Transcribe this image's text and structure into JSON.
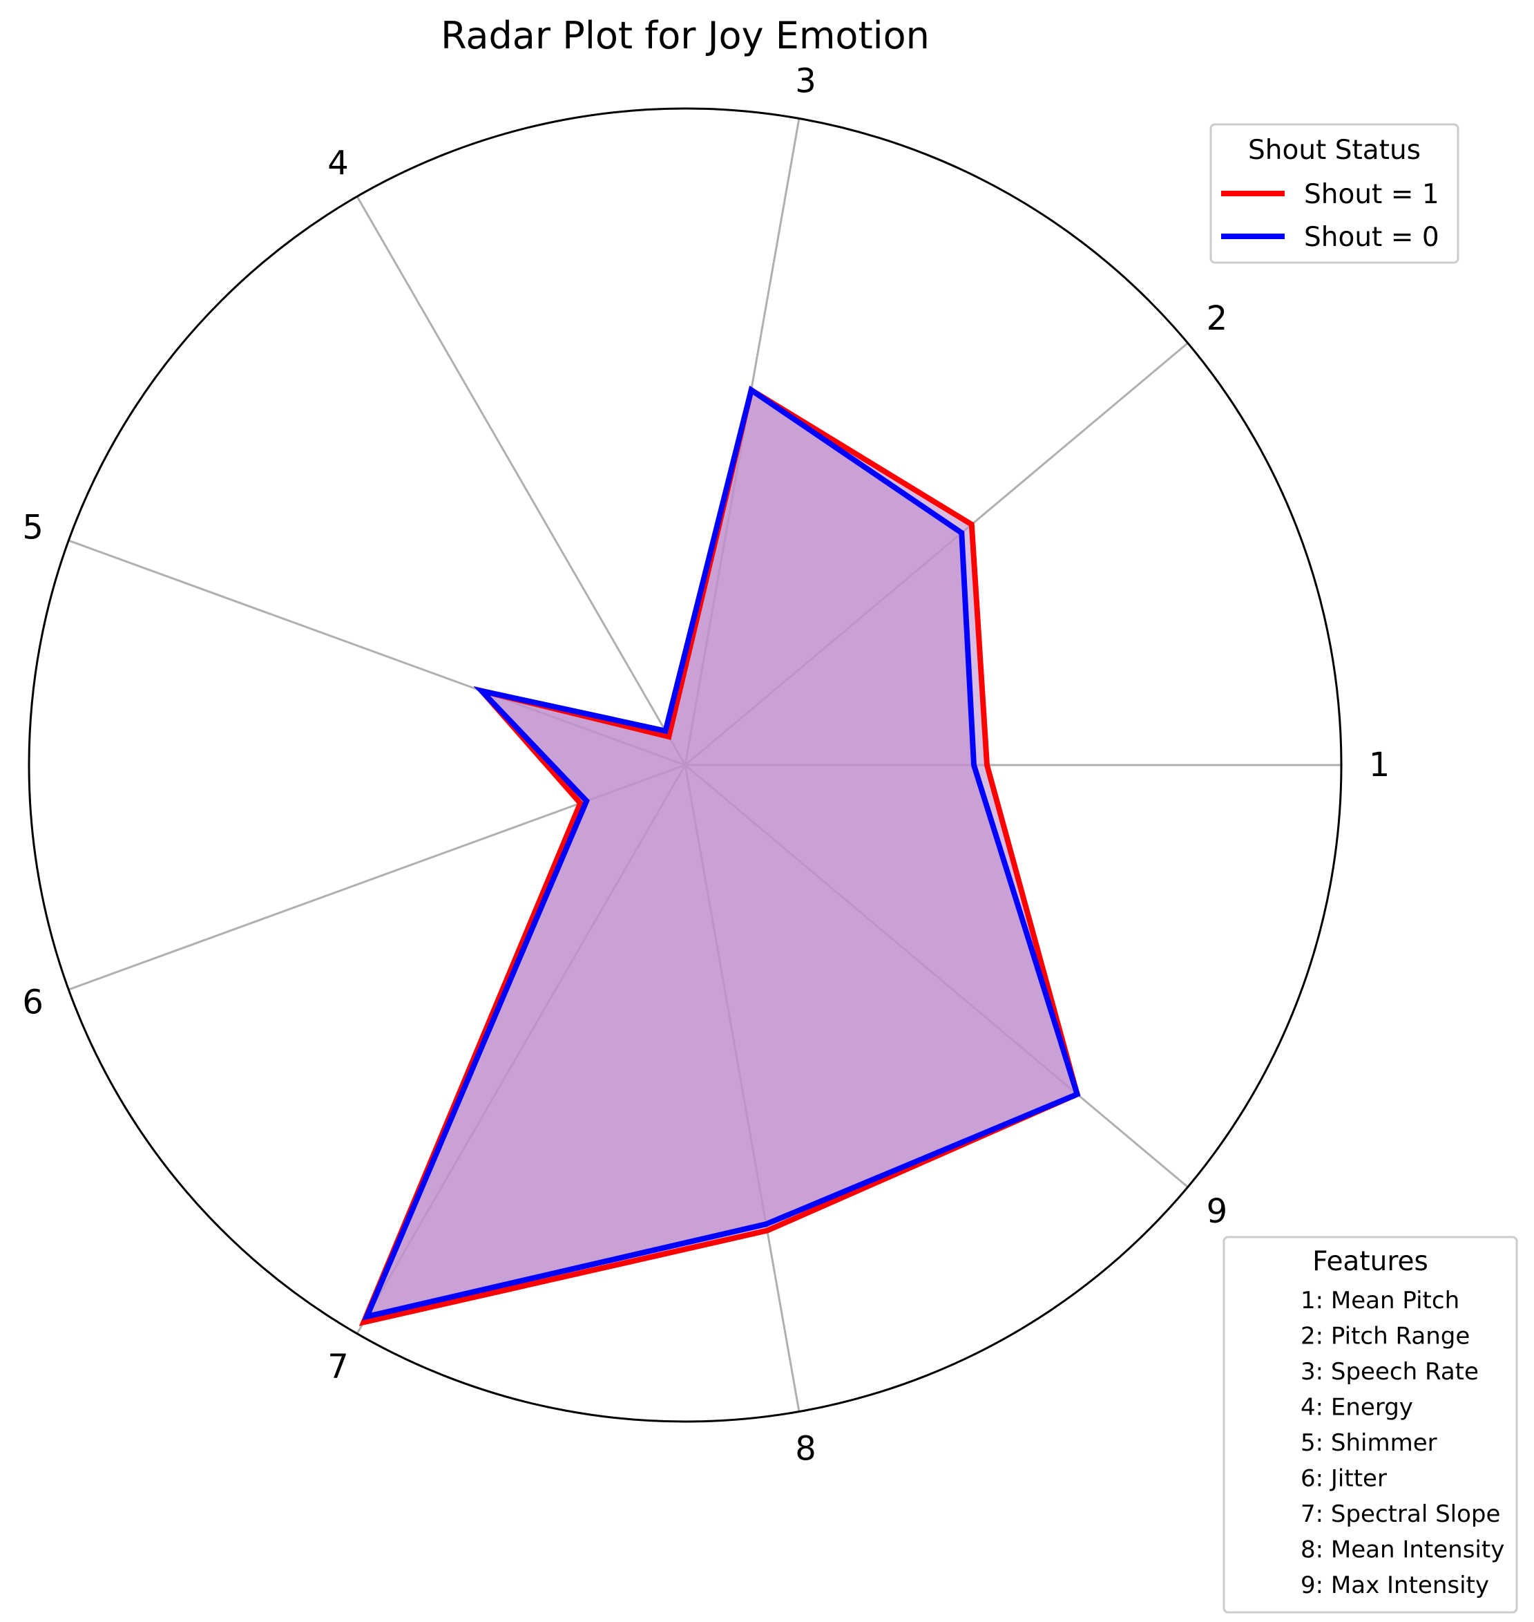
{
  "chart_data": {
    "type": "radar",
    "title": "Radar Plot for Joy Emotion",
    "categories": [
      "1",
      "2",
      "3",
      "4",
      "5",
      "6",
      "7",
      "8",
      "9"
    ],
    "rlim": [
      0,
      1
    ],
    "grid": true,
    "series": [
      {
        "name": "Shout = 1",
        "color": "#ff0000",
        "values": [
          0.46,
          0.57,
          0.58,
          0.05,
          0.33,
          0.17,
          0.98,
          0.72,
          0.78
        ]
      },
      {
        "name": "Shout = 0",
        "color": "#0000ff",
        "values": [
          0.44,
          0.55,
          0.58,
          0.06,
          0.33,
          0.16,
          0.97,
          0.71,
          0.78
        ]
      }
    ],
    "fill_color": "#bf8fcf",
    "legend": {
      "title": "Shout Status",
      "placement": "top-right",
      "entries": [
        "Shout = 1",
        "Shout = 0"
      ]
    },
    "features_legend": {
      "title": "Features",
      "placement": "bottom-right",
      "entries": [
        "1: Mean Pitch",
        "2: Pitch Range",
        "3: Speech Rate",
        "4: Energy",
        "5: Shimmer",
        "6: Jitter",
        "7: Spectral Slope",
        "8: Mean Intensity",
        "9: Max Intensity"
      ]
    }
  }
}
